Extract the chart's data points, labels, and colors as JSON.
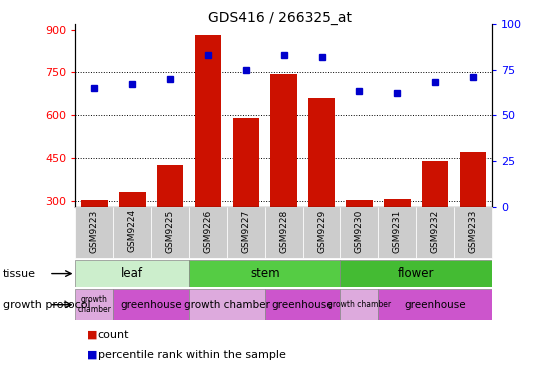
{
  "title": "GDS416 / 266325_at",
  "samples": [
    "GSM9223",
    "GSM9224",
    "GSM9225",
    "GSM9226",
    "GSM9227",
    "GSM9228",
    "GSM9229",
    "GSM9230",
    "GSM9231",
    "GSM9232",
    "GSM9233"
  ],
  "counts": [
    305,
    330,
    425,
    880,
    590,
    745,
    660,
    305,
    308,
    440,
    470
  ],
  "percentiles": [
    65,
    67,
    70,
    83,
    75,
    83,
    82,
    63,
    62,
    68,
    71
  ],
  "ylim_left": [
    280,
    920
  ],
  "ylim_right": [
    0,
    100
  ],
  "yticks_left": [
    300,
    450,
    600,
    750,
    900
  ],
  "yticks_right": [
    0,
    25,
    50,
    75,
    100
  ],
  "bar_color": "#cc1100",
  "dot_color": "#0000cc",
  "tissue_groups": [
    {
      "label": "leaf",
      "start": 0,
      "end": 2,
      "color": "#cceecc"
    },
    {
      "label": "stem",
      "start": 3,
      "end": 6,
      "color": "#55cc44"
    },
    {
      "label": "flower",
      "start": 7,
      "end": 10,
      "color": "#44bb33"
    }
  ],
  "protocol_groups": [
    {
      "label": "growth\nchamber",
      "start": 0,
      "end": 0,
      "color": "#ddaadd"
    },
    {
      "label": "greenhouse",
      "start": 1,
      "end": 2,
      "color": "#cc55cc"
    },
    {
      "label": "growth chamber",
      "start": 3,
      "end": 4,
      "color": "#ddaadd"
    },
    {
      "label": "greenhouse",
      "start": 5,
      "end": 6,
      "color": "#cc55cc"
    },
    {
      "label": "growth chamber",
      "start": 7,
      "end": 7,
      "color": "#ddaadd"
    },
    {
      "label": "greenhouse",
      "start": 8,
      "end": 10,
      "color": "#cc55cc"
    }
  ],
  "tissue_label": "tissue",
  "protocol_label": "growth protocol",
  "legend_count": "count",
  "legend_percentile": "percentile rank within the sample",
  "xticklabel_bg": "#cccccc",
  "plot_bg": "#ffffff"
}
